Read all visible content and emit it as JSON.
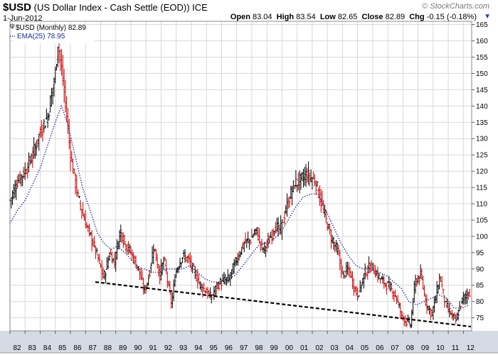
{
  "header": {
    "symbol": "$USD",
    "description": "(US Dollar Index - Cash Settle (EOD))",
    "exchange": "ICE",
    "date": "1-Jun-2012",
    "brand": "© StockCharts.com",
    "quote": [
      {
        "label": "Open",
        "value": "83.04"
      },
      {
        "label": "High",
        "value": "83.54"
      },
      {
        "label": "Low",
        "value": "82.65"
      },
      {
        "label": "Close",
        "value": "82.89"
      },
      {
        "label": "Chg",
        "value": "-0.15 (-0.18%)"
      }
    ]
  },
  "legend": [
    {
      "label": "$USD (Monthly) 82.89",
      "icon": "ohlc-bar-icon"
    },
    {
      "label": "EMA(25) 78.95",
      "icon": "dotted-line-icon"
    }
  ],
  "chart_data": {
    "type": "line",
    "title": "$USD",
    "xlabel": "",
    "ylabel": "",
    "xlim": [
      1982.0,
      2012.55
    ],
    "ylim": [
      71,
      166
    ],
    "x_ticks": [
      "82",
      "83",
      "84",
      "85",
      "86",
      "87",
      "88",
      "89",
      "90",
      "91",
      "92",
      "93",
      "94",
      "95",
      "96",
      "97",
      "98",
      "99",
      "00",
      "01",
      "02",
      "03",
      "04",
      "05",
      "06",
      "07",
      "08",
      "09",
      "10",
      "11",
      "12"
    ],
    "y_ticks": [
      75,
      80,
      85,
      90,
      95,
      100,
      105,
      110,
      115,
      120,
      125,
      130,
      135,
      140,
      145,
      150,
      155,
      160,
      165
    ],
    "grid": true,
    "y_axis_position": "right",
    "colors": {
      "up": "#000000",
      "down": "#cc0000",
      "ema": "#1c2d8f",
      "trend": "#000000",
      "grid": "#d8d8d8",
      "x_band": "#d5dbe4"
    },
    "series": [
      {
        "name": "$USD (Monthly)",
        "style": "monthly-ohlc",
        "points": [
          [
            1982.0,
            111
          ],
          [
            1982.5,
            117
          ],
          [
            1983.0,
            120
          ],
          [
            1983.5,
            125
          ],
          [
            1984.0,
            132
          ],
          [
            1984.5,
            137
          ],
          [
            1985.0,
            150
          ],
          [
            1985.17,
            160
          ],
          [
            1985.5,
            148
          ],
          [
            1985.8,
            135
          ],
          [
            1986.0,
            125
          ],
          [
            1986.5,
            112
          ],
          [
            1987.0,
            104
          ],
          [
            1987.5,
            98
          ],
          [
            1987.9,
            92
          ],
          [
            1988.2,
            87
          ],
          [
            1988.6,
            95
          ],
          [
            1988.9,
            92
          ],
          [
            1989.3,
            102
          ],
          [
            1989.6,
            98
          ],
          [
            1990.0,
            95
          ],
          [
            1990.5,
            90
          ],
          [
            1990.9,
            83
          ],
          [
            1991.2,
            88
          ],
          [
            1991.5,
            97
          ],
          [
            1991.9,
            88
          ],
          [
            1992.2,
            93
          ],
          [
            1992.5,
            84
          ],
          [
            1992.7,
            79
          ],
          [
            1992.95,
            89
          ],
          [
            1993.4,
            94
          ],
          [
            1993.8,
            93
          ],
          [
            1994.2,
            89
          ],
          [
            1994.6,
            85
          ],
          [
            1995.0,
            83
          ],
          [
            1995.3,
            81
          ],
          [
            1995.7,
            85
          ],
          [
            1996.0,
            86
          ],
          [
            1996.5,
            87
          ],
          [
            1997.0,
            93
          ],
          [
            1997.5,
            98
          ],
          [
            1997.9,
            99
          ],
          [
            1998.3,
            102
          ],
          [
            1998.7,
            96
          ],
          [
            1999.1,
            98
          ],
          [
            1999.5,
            103
          ],
          [
            1999.9,
            102
          ],
          [
            2000.3,
            109
          ],
          [
            2000.8,
            116
          ],
          [
            2001.2,
            117
          ],
          [
            2001.6,
            119
          ],
          [
            2001.9,
            118
          ],
          [
            2002.2,
            117
          ],
          [
            2002.5,
            112
          ],
          [
            2002.9,
            105
          ],
          [
            2003.3,
            99
          ],
          [
            2003.7,
            95
          ],
          [
            2004.0,
            88
          ],
          [
            2004.4,
            90
          ],
          [
            2004.8,
            84
          ],
          [
            2005.0,
            82
          ],
          [
            2005.5,
            89
          ],
          [
            2005.9,
            91
          ],
          [
            2006.3,
            88
          ],
          [
            2006.7,
            86
          ],
          [
            2007.0,
            85
          ],
          [
            2007.5,
            82
          ],
          [
            2007.9,
            76
          ],
          [
            2008.2,
            74
          ],
          [
            2008.5,
            73
          ],
          [
            2008.8,
            86
          ],
          [
            2009.2,
            88
          ],
          [
            2009.5,
            80
          ],
          [
            2009.9,
            76
          ],
          [
            2010.2,
            82
          ],
          [
            2010.45,
            88
          ],
          [
            2010.8,
            79
          ],
          [
            2011.2,
            76
          ],
          [
            2011.5,
            74
          ],
          [
            2011.8,
            79
          ],
          [
            2012.0,
            81
          ],
          [
            2012.42,
            83
          ]
        ]
      },
      {
        "name": "EMA(25)",
        "style": "dotted",
        "points": [
          [
            1982.0,
            104
          ],
          [
            1982.5,
            108
          ],
          [
            1983.0,
            111
          ],
          [
            1983.5,
            116
          ],
          [
            1984.0,
            121
          ],
          [
            1984.5,
            128
          ],
          [
            1985.0,
            135
          ],
          [
            1985.4,
            140
          ],
          [
            1985.8,
            135
          ],
          [
            1986.3,
            125
          ],
          [
            1986.8,
            115
          ],
          [
            1987.3,
            108
          ],
          [
            1987.8,
            101
          ],
          [
            1988.2,
            98
          ],
          [
            1988.7,
            96
          ],
          [
            1989.1,
            97
          ],
          [
            1989.6,
            95
          ],
          [
            1990.0,
            93
          ],
          [
            1990.5,
            90
          ],
          [
            1990.9,
            90
          ],
          [
            1991.4,
            89
          ],
          [
            1991.9,
            89
          ],
          [
            1992.4,
            90
          ],
          [
            1992.9,
            90
          ],
          [
            1993.4,
            90
          ],
          [
            1993.9,
            91
          ],
          [
            1994.4,
            89
          ],
          [
            1994.9,
            87
          ],
          [
            1995.4,
            86
          ],
          [
            1995.9,
            86
          ],
          [
            1996.4,
            87
          ],
          [
            1996.9,
            88
          ],
          [
            1997.4,
            91
          ],
          [
            1997.9,
            94
          ],
          [
            1998.4,
            97
          ],
          [
            1998.9,
            98
          ],
          [
            1999.4,
            99
          ],
          [
            1999.9,
            101
          ],
          [
            2000.4,
            105
          ],
          [
            2000.9,
            109
          ],
          [
            2001.4,
            112
          ],
          [
            2001.9,
            113
          ],
          [
            2002.4,
            113
          ],
          [
            2002.9,
            108
          ],
          [
            2003.4,
            103
          ],
          [
            2003.9,
            98
          ],
          [
            2004.4,
            94
          ],
          [
            2004.9,
            91
          ],
          [
            2005.4,
            90
          ],
          [
            2005.9,
            90
          ],
          [
            2006.4,
            89
          ],
          [
            2006.9,
            88
          ],
          [
            2007.4,
            86
          ],
          [
            2007.9,
            84
          ],
          [
            2008.4,
            80
          ],
          [
            2008.9,
            79
          ],
          [
            2009.4,
            80
          ],
          [
            2009.9,
            81
          ],
          [
            2010.4,
            82
          ],
          [
            2010.9,
            81
          ],
          [
            2011.4,
            78
          ],
          [
            2011.9,
            78
          ],
          [
            2012.4,
            79
          ]
        ]
      },
      {
        "name": "",
        "style": "dashed-trendline",
        "points": [
          [
            1987.65,
            86
          ],
          [
            2012.5,
            72.3
          ]
        ]
      }
    ]
  }
}
